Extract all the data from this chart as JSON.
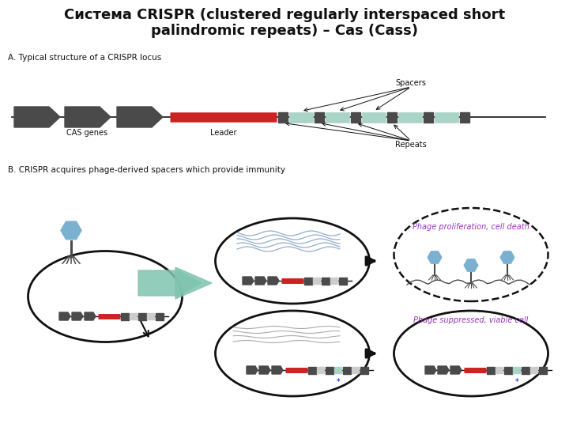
{
  "title_line1": "Система CRISPR (clustered regularly interspaced short",
  "title_line2": "palindromic repeats) – Cas (Cass)",
  "title_fontsize": 13,
  "bg_color": "#ffffff",
  "section_a_label": "A. Typical structure of a CRISPR locus",
  "section_b_label": "B. CRISPR acquires phage-derived spacers which provide immunity",
  "label_cas": "CAS genes",
  "label_leader": "Leader",
  "label_spacers": "Spacers",
  "label_repeats": "Repeats",
  "label_phage_death": "Phage proliferation, cell death",
  "label_phage_suppressed": "Phage suppressed, viable cell",
  "dark_gray": "#4a4a4a",
  "mid_gray": "#888888",
  "light_gray": "#aaaaaa",
  "red_color": "#cc2222",
  "light_blue_spacer": "#aad4c8",
  "teal_arrow": "#7fc4b0",
  "purple_text": "#9933bb",
  "black": "#111111",
  "phage_blue": "#7ab0d0"
}
